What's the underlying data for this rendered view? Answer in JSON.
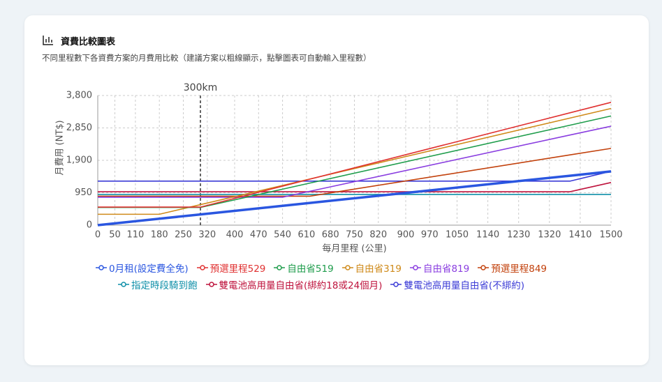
{
  "header": {
    "title": "資費比較圖表",
    "subtitle": "不同里程數下各資費方案的月費用比較（建議方案以粗線顯示，點擊圖表可自動輸入里程數）"
  },
  "chart_data": {
    "type": "line",
    "x_label": "每月里程 (公里)",
    "y_label": "月費用 (NT$)",
    "x": [
      0,
      180,
      300,
      540,
      620,
      1380,
      1500
    ],
    "xlim": [
      0,
      1500
    ],
    "xticks": [
      0,
      50,
      110,
      180,
      250,
      320,
      400,
      470,
      540,
      610,
      680,
      750,
      820,
      900,
      970,
      1050,
      1140,
      1230,
      1320,
      1410,
      1500
    ],
    "ylim": [
      0,
      3800
    ],
    "yticks": [
      0,
      950,
      {
        "value": 1900,
        "label": "1,900"
      },
      {
        "value": 2850,
        "label": "2,850"
      },
      {
        "value": 3800,
        "label": "3,800"
      }
    ],
    "grid": true,
    "annotations": [
      {
        "x": 300,
        "label": "300km"
      }
    ],
    "series": [
      {
        "name": "0月租(設定費全免)",
        "color": "#2a56e0",
        "highlight": true,
        "values": [
          0,
          189,
          315,
          567,
          651,
          1449,
          1575
        ]
      },
      {
        "name": "預選里程529",
        "color": "#e03131",
        "values": [
          529,
          529,
          529,
          1143,
          1348,
          3293,
          3600
        ]
      },
      {
        "name": "自由省519",
        "color": "#1f9d4c",
        "values": [
          519,
          519,
          519,
          1055,
          1233,
          2929,
          3200
        ]
      },
      {
        "name": "自由省319",
        "color": "#cf8a1a",
        "values": [
          319,
          319,
          601,
          1165,
          1353,
          3139,
          3420
        ]
      },
      {
        "name": "自由省819",
        "color": "#8a3ee0",
        "values": [
          819,
          819,
          819,
          819,
          993,
          2642,
          2900
        ]
      },
      {
        "name": "預選里程849",
        "color": "#c2410c",
        "values": [
          849,
          849,
          849,
          849,
          849,
          2060,
          2250
        ]
      },
      {
        "name": "指定時段騎到飽",
        "color": "#0e8fa8",
        "values": [
          900,
          900,
          900,
          900,
          900,
          900,
          900
        ]
      },
      {
        "name": "雙電池高用量自由省(綁約18或24個月)",
        "color": "#be123c",
        "values": [
          980,
          980,
          980,
          980,
          980,
          980,
          1250
        ]
      },
      {
        "name": "雙電池高用量自由省(不綁約)",
        "color": "#3b3bd6",
        "values": [
          1290,
          1290,
          1290,
          1290,
          1290,
          1290,
          1580
        ]
      }
    ]
  }
}
